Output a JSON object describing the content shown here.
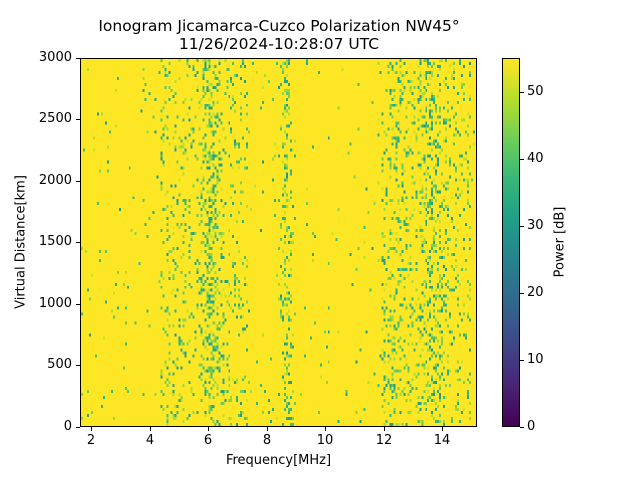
{
  "chart_data": {
    "type": "heatmap",
    "title": "Ionogram Jicamarca-Cuzco Polarization NW45°",
    "subtitle": "11/26/2024-10:28:07 UTC",
    "xlabel": "Frequency[MHz]",
    "ylabel": "Virtual Distance[km]",
    "xlim": [
      1.6,
      15.2
    ],
    "ylim": [
      0,
      3000
    ],
    "x_ticks": [
      2,
      4,
      6,
      8,
      10,
      12,
      14
    ],
    "y_ticks": [
      0,
      500,
      1000,
      1500,
      2000,
      2500,
      3000
    ],
    "colorbar": {
      "label": "Power [dB]",
      "colormap": "viridis",
      "range": [
        0,
        55
      ],
      "ticks": [
        0,
        10,
        20,
        30,
        40,
        50
      ]
    },
    "background_level_db": 55,
    "features": [
      {
        "description": "diffuse lower-power noise band",
        "freq_range_mhz": [
          4.3,
          7.3
        ],
        "min_db_approx": 35
      },
      {
        "description": "strongest vertical band",
        "center_mhz": 6.0,
        "width_mhz": 0.5
      },
      {
        "description": "narrow vertical band",
        "center_mhz": 8.65,
        "width_mhz": 0.35
      },
      {
        "description": "broad noisy band",
        "freq_range_mhz": [
          11.9,
          15.0
        ],
        "min_db_approx": 30
      },
      {
        "description": "intense sub-band",
        "center_mhz": 13.6,
        "width_mhz": 0.6
      }
    ],
    "grid": false
  },
  "title_lines": [
    "Ionogram Jicamarca-Cuzco Polarization NW45°",
    "11/26/2024-10:28:07 UTC"
  ],
  "axes": {
    "x_tick_labels": [
      "2",
      "4",
      "6",
      "8",
      "10",
      "12",
      "14"
    ],
    "y_tick_labels": [
      "0",
      "500",
      "1000",
      "1500",
      "2000",
      "2500",
      "3000"
    ],
    "xlabel": "Frequency[MHz]",
    "ylabel": "Virtual Distance[km]"
  },
  "colorbar": {
    "label": "Power [dB]",
    "tick_labels": [
      "0",
      "10",
      "20",
      "30",
      "40",
      "50"
    ]
  }
}
